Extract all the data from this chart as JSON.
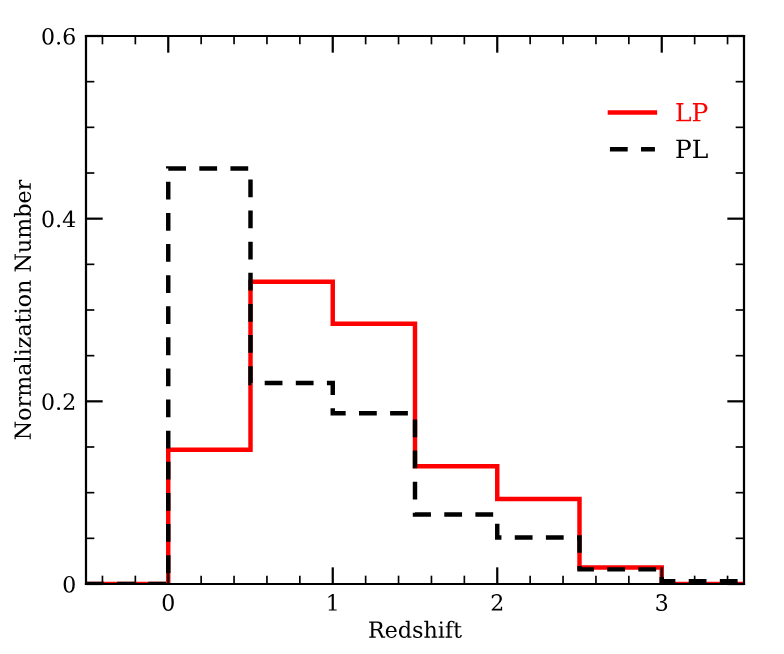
{
  "chart_data": {
    "type": "histogram",
    "xlabel": "Redshift",
    "ylabel": "Normalization Number",
    "bins": [
      -0.5,
      0,
      0.5,
      1,
      1.5,
      2,
      2.5,
      3,
      3.5
    ],
    "series": [
      {
        "name": "LP",
        "color": "#ff0000",
        "line_style": "solid",
        "values": [
          0,
          0.147,
          0.331,
          0.285,
          0.129,
          0.093,
          0.018,
          0
        ]
      },
      {
        "name": "PL",
        "color": "#000000",
        "line_style": "dashed",
        "values": [
          0,
          0.455,
          0.22,
          0.187,
          0.076,
          0.051,
          0.016,
          0.003
        ]
      }
    ],
    "xlim": [
      -0.5,
      3.5
    ],
    "xticks": [
      0,
      1,
      2,
      3
    ],
    "ylim": [
      0,
      0.6
    ],
    "yticks": [
      {
        "value": 0,
        "label": "0"
      },
      0.2,
      0.4,
      0.6
    ],
    "grid": false,
    "legend": "top right"
  }
}
